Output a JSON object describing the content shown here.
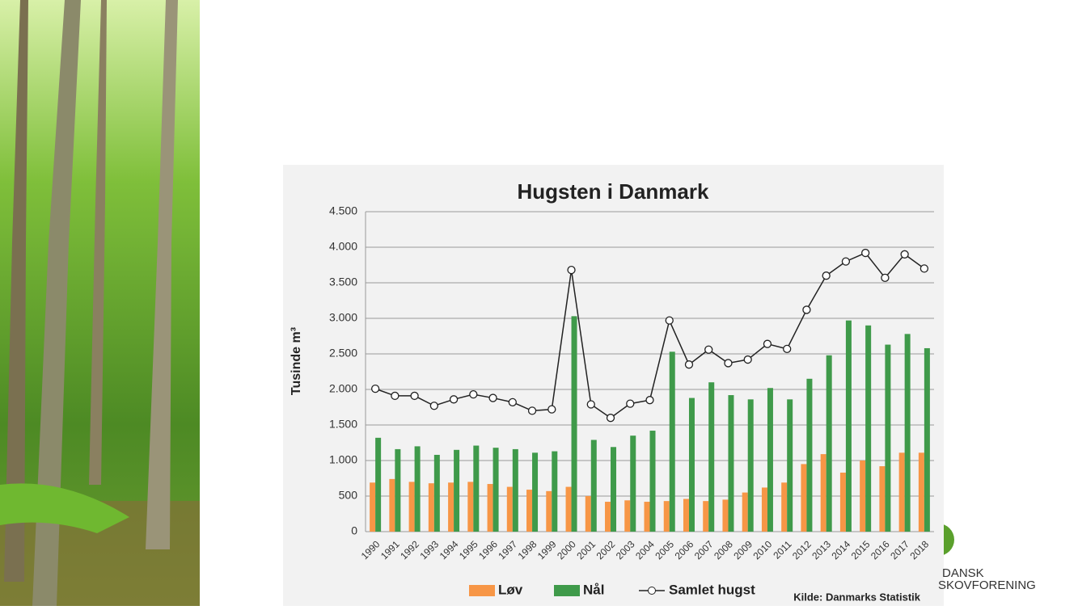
{
  "chart_data": {
    "type": "bar",
    "title": "Hugsten i Danmark",
    "y_label": "Tusinde m³",
    "source": "Kilde: Danmarks Statistik",
    "categories": [
      "1990",
      "1991",
      "1992",
      "1993",
      "1994",
      "1995",
      "1996",
      "1997",
      "1998",
      "1999",
      "2000",
      "2001",
      "2002",
      "2003",
      "2004",
      "2005",
      "2006",
      "2007",
      "2008",
      "2009",
      "2010",
      "2011",
      "2012",
      "2013",
      "2014",
      "2015",
      "2016",
      "2017",
      "2018"
    ],
    "series": [
      {
        "name": "Løv",
        "color": "#f79646",
        "type": "bar",
        "values": [
          690,
          740,
          700,
          680,
          690,
          700,
          670,
          630,
          590,
          570,
          630,
          500,
          420,
          440,
          420,
          430,
          460,
          430,
          450,
          550,
          620,
          690,
          950,
          1090,
          830,
          1000,
          920,
          1110,
          1110
        ]
      },
      {
        "name": "Nål",
        "color": "#3f9a4a",
        "type": "bar",
        "values": [
          1320,
          1160,
          1200,
          1080,
          1150,
          1210,
          1180,
          1160,
          1110,
          1130,
          3030,
          1290,
          1190,
          1350,
          1420,
          2530,
          1880,
          2100,
          1920,
          1860,
          2020,
          1860,
          2150,
          2480,
          2970,
          2900,
          2630,
          2780,
          2580
        ]
      },
      {
        "name": "Samlet hugst",
        "color": "#222222",
        "type": "line",
        "values": [
          2010,
          1910,
          1910,
          1770,
          1860,
          1930,
          1880,
          1820,
          1700,
          1720,
          3680,
          1790,
          1600,
          1800,
          1850,
          2970,
          2350,
          2560,
          2370,
          2420,
          2640,
          2570,
          3120,
          3600,
          3800,
          3920,
          3570,
          3900,
          3700
        ]
      }
    ],
    "ylim": [
      0,
      4500
    ],
    "yticks": [
      0,
      500,
      {
        "value": 1000,
        "label": "1.000"
      },
      {
        "value": 1500,
        "label": "1.500"
      },
      {
        "value": 2000,
        "label": "2.000"
      },
      {
        "value": 2500,
        "label": "2.500"
      },
      {
        "value": 3000,
        "label": "3.000"
      },
      {
        "value": 3500,
        "label": "3.500"
      },
      {
        "value": 4000,
        "label": "4.000"
      },
      {
        "value": 4500,
        "label": "4.500"
      }
    ],
    "grid": true
  },
  "logo": {
    "line1": "DANSK",
    "line2": "SKOVFORENING"
  }
}
